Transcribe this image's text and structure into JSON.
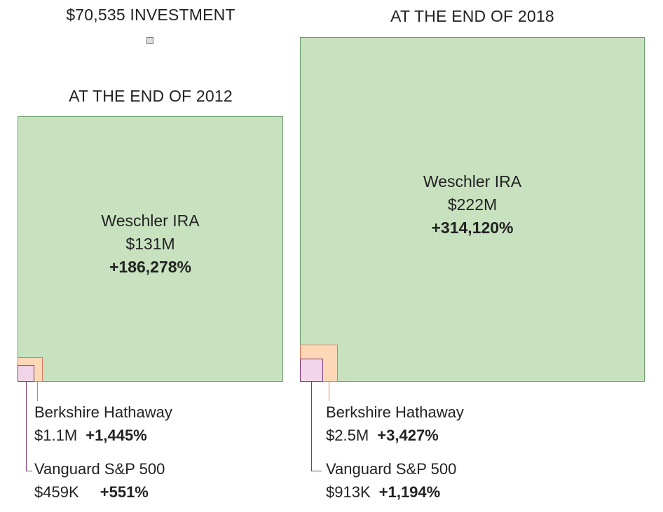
{
  "investment": {
    "label": "$70,535 INVESTMENT"
  },
  "colors": {
    "weschler_fill": "#c8e2bf",
    "weschler_stroke": "#6b9a6b",
    "berkshire_fill": "#fcd8b6",
    "berkshire_stroke": "#e07a5f",
    "vanguard_fill": "#f1d6ea",
    "vanguard_stroke": "#7b3a72",
    "investment_fill": "#dddddd",
    "investment_stroke": "#777777"
  },
  "chart_data": [
    {
      "type": "nested-square",
      "title": "AT THE END OF 2012",
      "series": [
        {
          "name": "Weschler IRA",
          "value_label": "$131M",
          "change_label": "+186,278%",
          "value": 131000000
        },
        {
          "name": "Berkshire Hathaway",
          "value_label": "$1.1M",
          "change_label": "+1,445%",
          "value": 1100000
        },
        {
          "name": "Vanguard S&P 500",
          "value_label": "$459K",
          "change_label": "+551%",
          "value": 459000
        }
      ]
    },
    {
      "type": "nested-square",
      "title": "AT THE END OF 2018",
      "series": [
        {
          "name": "Weschler IRA",
          "value_label": "$222M",
          "change_label": "+314,120%",
          "value": 222000000
        },
        {
          "name": "Berkshire Hathaway",
          "value_label": "$2.5M",
          "change_label": "+3,427%",
          "value": 2500000
        },
        {
          "name": "Vanguard S&P 500",
          "value_label": "$913K",
          "change_label": "+1,194%",
          "value": 913000
        }
      ]
    }
  ]
}
